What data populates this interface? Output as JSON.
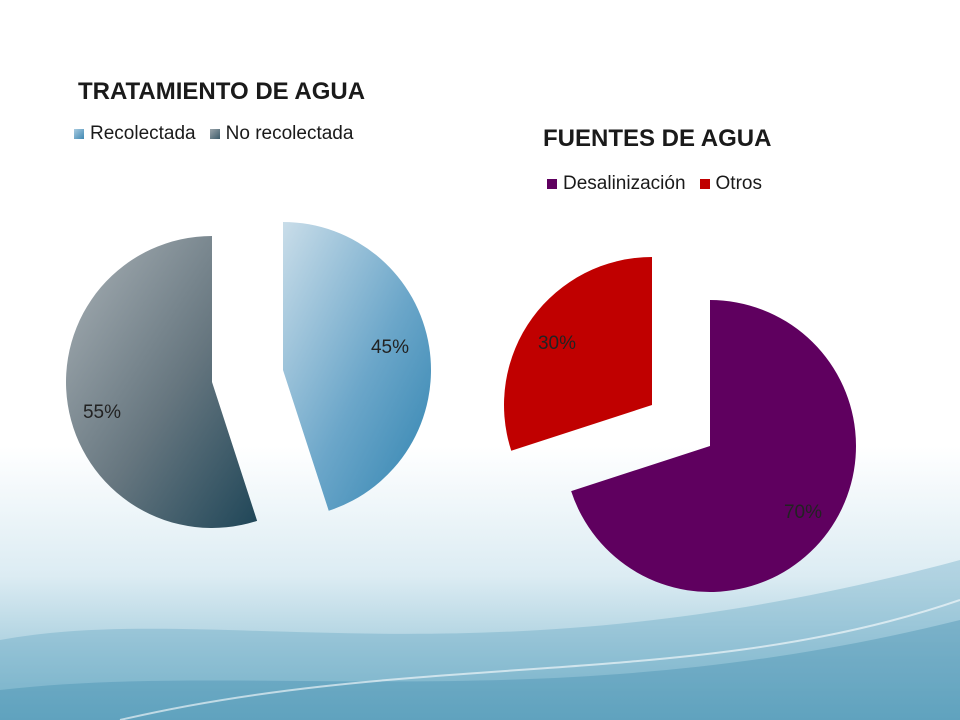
{
  "chart_data": [
    {
      "type": "pie",
      "title": "TRATAMIENTO DE AGUA",
      "legend_position": "top",
      "exploded": true,
      "slices": [
        {
          "label": "Recolectada",
          "value": 45,
          "data_label": "45%",
          "color": "#4a8db6"
        },
        {
          "label": "No recolectada",
          "value": 55,
          "data_label": "55%",
          "color": "#5b6d78"
        }
      ]
    },
    {
      "type": "pie",
      "title": "FUENTES DE AGUA",
      "legend_position": "top",
      "exploded": true,
      "slices": [
        {
          "label": "Desalinización",
          "value": 70,
          "data_label": "70%",
          "color": "#5f005f"
        },
        {
          "label": "Otros",
          "value": 30,
          "data_label": "30%",
          "color": "#c00000"
        }
      ]
    }
  ]
}
